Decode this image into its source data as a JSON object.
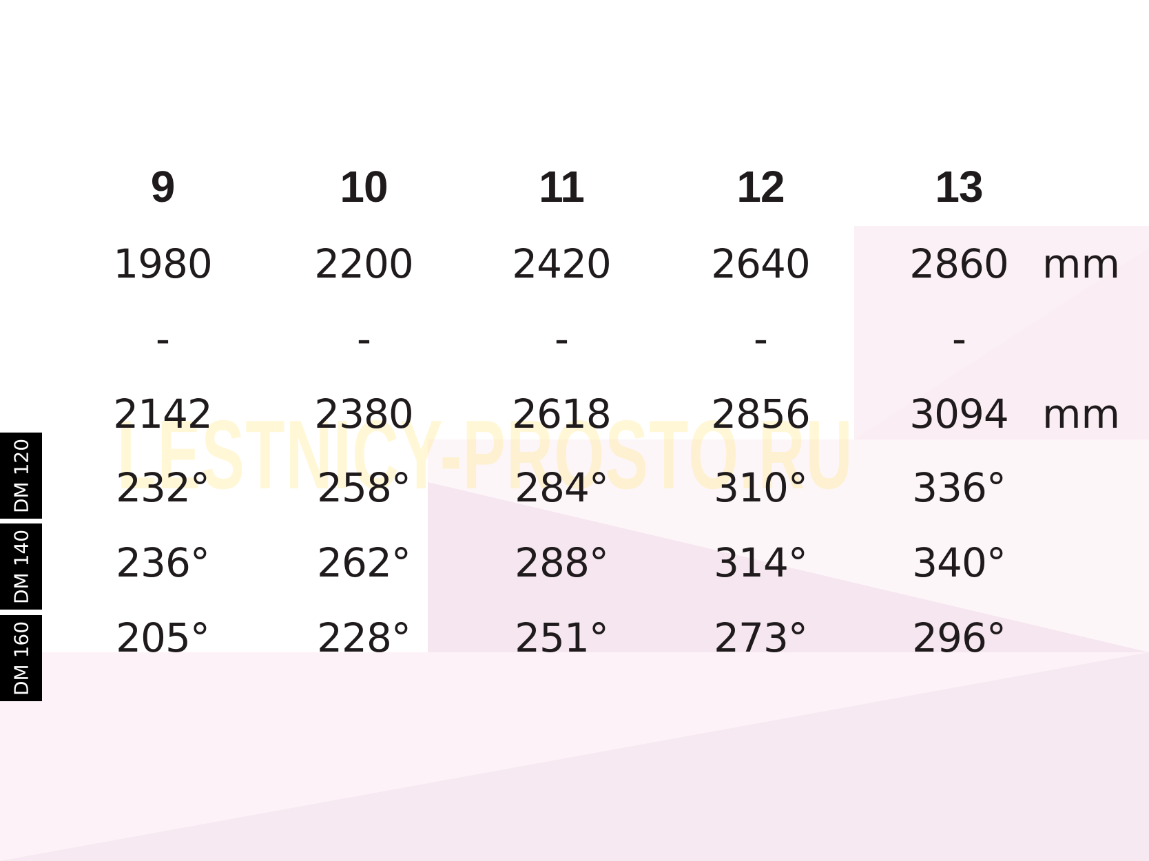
{
  "watermark": "LESTNICY-PROSTO.RU",
  "colors": {
    "background_pink": "#fbeef4",
    "watermark": "#ffe98a",
    "label_bg": "#000000"
  },
  "columns": [
    "9",
    "10",
    "11",
    "12",
    "13"
  ],
  "length_min": [
    "1980",
    "2200",
    "2420",
    "2640",
    "2860"
  ],
  "separator": [
    "-",
    "-",
    "-",
    "-",
    "-"
  ],
  "length_max": [
    "2142",
    "2380",
    "2618",
    "2856",
    "3094"
  ],
  "unit": "mm",
  "rows": [
    {
      "label": "DM 120",
      "values": [
        "232°",
        "258°",
        "284°",
        "310°",
        "336°"
      ]
    },
    {
      "label": "DM 140",
      "values": [
        "236°",
        "262°",
        "288°",
        "314°",
        "340°"
      ]
    },
    {
      "label": "DM 160",
      "values": [
        "205°",
        "228°",
        "251°",
        "273°",
        "296°"
      ]
    }
  ]
}
